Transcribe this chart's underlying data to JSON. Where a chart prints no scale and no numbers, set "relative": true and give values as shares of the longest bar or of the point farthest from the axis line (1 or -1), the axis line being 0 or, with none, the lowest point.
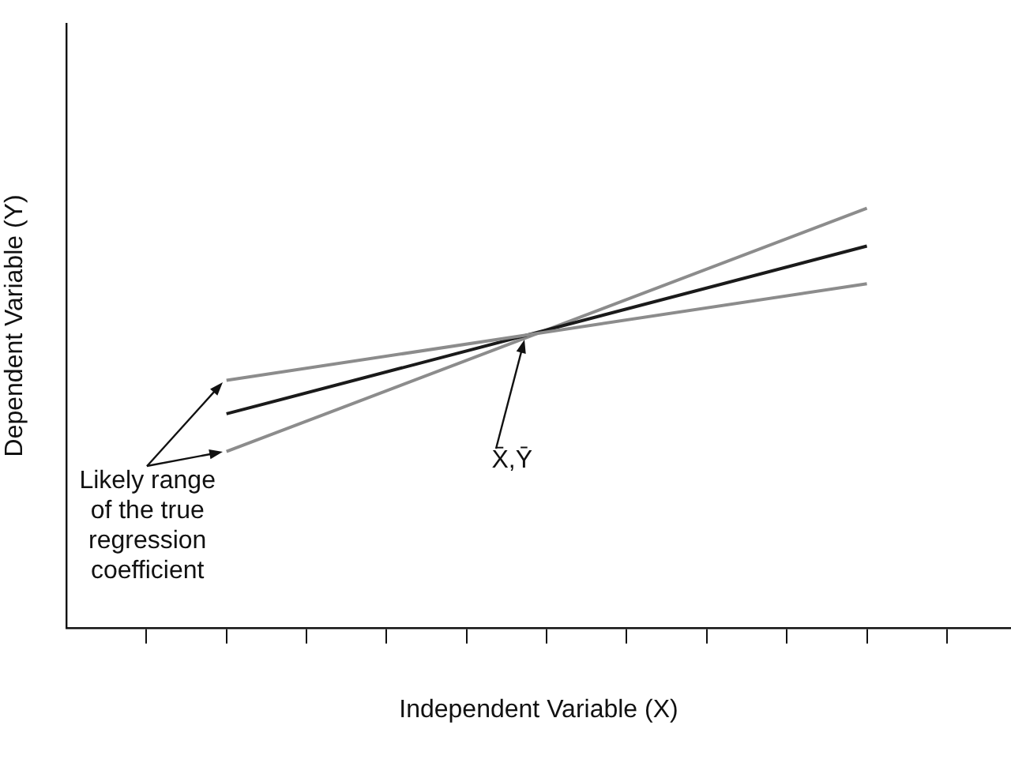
{
  "chart_data": {
    "type": "line",
    "relative": true,
    "xlabel": "Independent Variable (X)",
    "ylabel": "Dependent Variable (Y)",
    "categories": [
      null,
      null,
      null,
      null,
      null,
      null,
      null,
      null,
      null,
      null,
      null
    ],
    "series": [
      {
        "color": "#8c8c8c",
        "values": [
          null,
          0.59,
          null,
          null,
          null,
          null,
          null,
          null,
          null,
          0.82,
          null
        ]
      },
      {
        "color": "#1a1a1a",
        "values": [
          null,
          0.51,
          null,
          null,
          null,
          null,
          null,
          null,
          null,
          0.91,
          null
        ]
      },
      {
        "color": "#8c8c8c",
        "values": [
          null,
          0.42,
          null,
          null,
          null,
          null,
          null,
          null,
          null,
          1,
          null
        ]
      }
    ],
    "annotations": [
      "X̄,Ȳ",
      "Likely range of the true regression coefficient"
    ],
    "grid": false,
    "legend": false,
    "marker": "none",
    "line_style": "solid"
  }
}
